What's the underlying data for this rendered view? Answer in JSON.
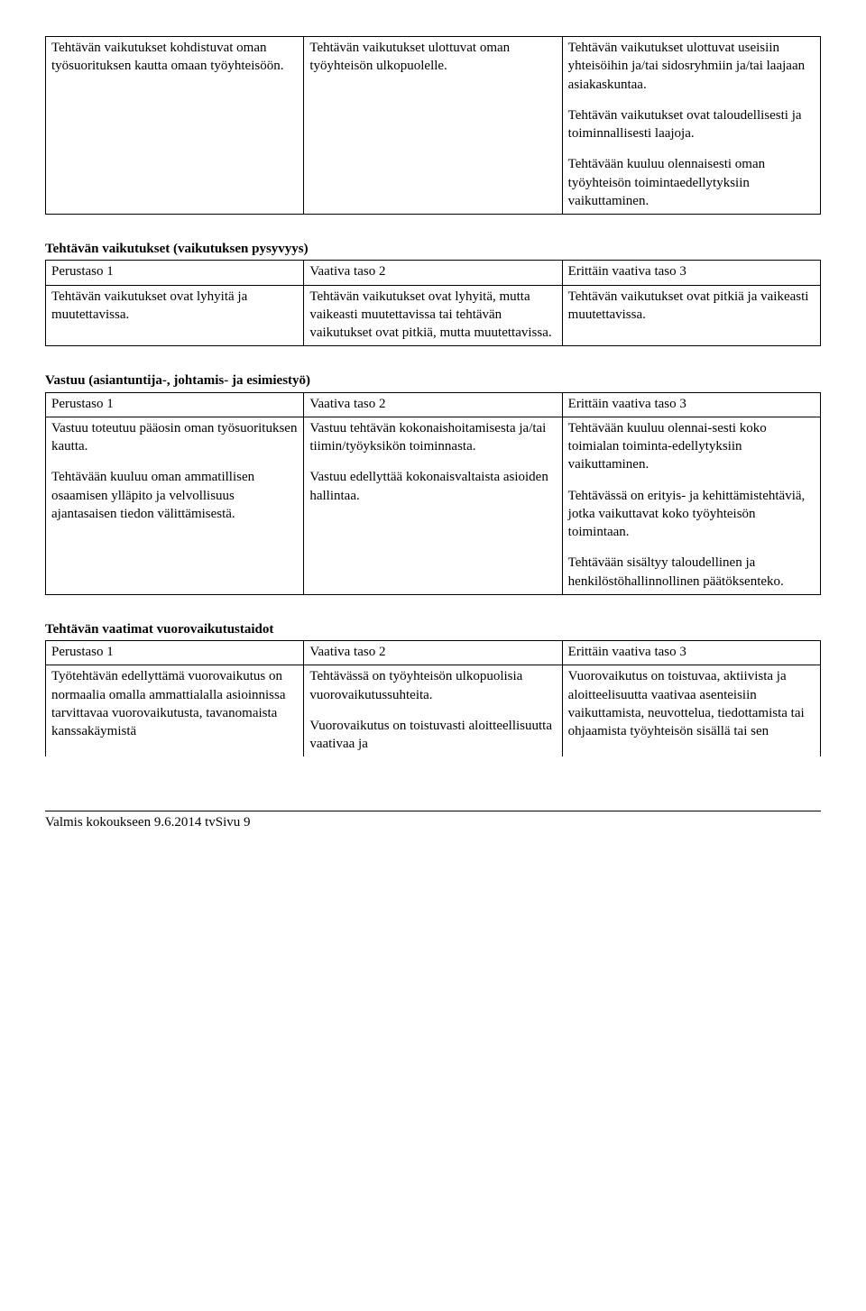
{
  "table1": {
    "r1c1": "Tehtävän vaikutukset kohdistuvat oman työsuorituksen kautta omaan työyhteisöön.",
    "r1c2": "Tehtävän vaikutukset ulottuvat oman työyhteisön ulkopuolelle.",
    "r1c3a": "Tehtävän vaikutukset ulottuvat useisiin yhteisöihin ja/tai sidosryhmiin ja/tai laajaan asiakaskuntaa.",
    "r1c3b": "Tehtävän vaikutukset ovat taloudellisesti ja toiminnallisesti laajoja.",
    "r1c3c": "Tehtävään kuuluu olennaisesti oman työyhteisön toimintaedellytyksiin vaikuttaminen."
  },
  "section2": {
    "title": "Tehtävän vaikutukset (vaikutuksen pysyvyys)",
    "h1": "Perustaso 1",
    "h2": "Vaativa taso 2",
    "h3": "Erittäin vaativa taso 3",
    "c1": "Tehtävän vaikutukset ovat lyhyitä ja muutettavissa.",
    "c2": "Tehtävän vaikutukset ovat lyhyitä, mutta vaikeasti muutettavissa tai tehtävän vaikutukset ovat pitkiä, mutta muutettavissa.",
    "c3": "Tehtävän vaikutukset ovat pitkiä ja vaikeasti muutettavissa."
  },
  "section3": {
    "title": "Vastuu (asiantuntija-, johtamis- ja esimiestyö)",
    "h1": "Perustaso 1",
    "h2": "Vaativa taso 2",
    "h3": "Erittäin vaativa taso 3",
    "c1a": "Vastuu toteutuu pääosin oman työsuorituksen kautta.",
    "c1b": "Tehtävään kuuluu oman ammatillisen osaamisen ylläpito ja velvollisuus ajantasaisen tiedon välittämisestä.",
    "c2a": "Vastuu tehtävän kokonaishoitamisesta ja/tai tiimin/työyksikön toiminnasta.",
    "c2b": "Vastuu edellyttää kokonaisvaltaista asioiden hallintaa.",
    "c3a": "Tehtävään kuuluu olennai-sesti koko toimialan toiminta-edellytyksiin vaikuttaminen.",
    "c3b": "Tehtävässä on erityis- ja kehittämistehtäviä, jotka vaikuttavat koko työyhteisön toimintaan.",
    "c3c": "Tehtävään sisältyy taloudellinen ja henkilöstöhallinnollinen päätöksenteko."
  },
  "section4": {
    "title": "Tehtävän vaatimat vuorovaikutustaidot",
    "h1": "Perustaso 1",
    "h2": "Vaativa taso 2",
    "h3": "Erittäin vaativa taso 3",
    "c1": "Työtehtävän edellyttämä vuorovaikutus on normaalia omalla ammattialalla asioinnissa tarvittavaa vuorovaikutusta, tavanomaista kanssakäymistä",
    "c2a": "Tehtävässä on työyhteisön ulkopuolisia vuorovaikutussuhteita.",
    "c2b": "Vuorovaikutus on toistuvasti aloitteellisuutta vaativaa ja",
    "c3": "Vuorovaikutus on toistuvaa, aktiivista ja aloitteelisuutta vaativaa asenteisiin vaikuttamista, neuvottelua, tiedottamista tai ohjaamista työyhteisön sisällä tai sen"
  },
  "footer": "Valmis kokoukseen 9.6.2014 tvSivu 9"
}
